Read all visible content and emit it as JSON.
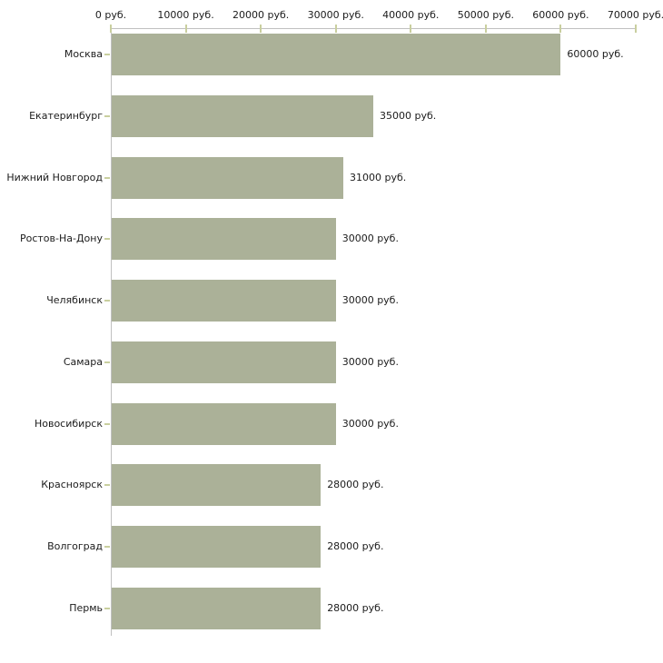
{
  "chart_data": {
    "type": "bar",
    "orientation": "horizontal",
    "title": "",
    "categories": [
      "Москва",
      "Екатеринбург",
      "Нижний Новгород",
      "Ростов-На-Дону",
      "Челябинск",
      "Самара",
      "Новосибирск",
      "Красноярск",
      "Волгоград",
      "Пермь"
    ],
    "values": [
      60000,
      35000,
      31000,
      30000,
      30000,
      30000,
      30000,
      28000,
      28000,
      28000
    ],
    "bar_labels": [
      "60000 руб.",
      "35000 руб.",
      "31000 руб.",
      "30000 руб.",
      "30000 руб.",
      "30000 руб.",
      "30000 руб.",
      "28000 руб.",
      "28000 руб.",
      "28000 руб."
    ],
    "x_axis": {
      "position": "top",
      "range": [
        0,
        70000
      ],
      "ticks": [
        0,
        10000,
        20000,
        30000,
        40000,
        50000,
        60000,
        70000
      ],
      "tick_labels": [
        "0 руб.",
        "10000 руб.",
        "20000 руб.",
        "30000 руб.",
        "40000 руб.",
        "50000 руб.",
        "60000 руб.",
        "70000 руб."
      ]
    },
    "grid": false,
    "legend": false,
    "colors": {
      "bar": "#abb198",
      "axis_line": "#c0c0c0",
      "tick": "#c9cf9f",
      "text": "#1b1b1b",
      "background": "#ffffff"
    }
  }
}
